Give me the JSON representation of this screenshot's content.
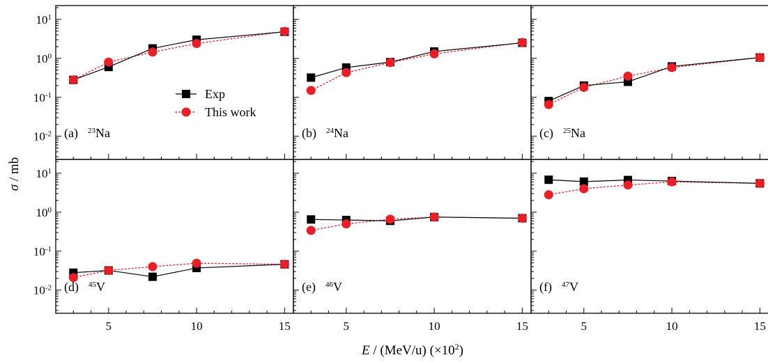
{
  "chart_data": {
    "type": "scatter",
    "xlabel": {
      "italic": "E",
      "rest": " / (MeV/u) (×10",
      "sup": "2",
      "close": ")"
    },
    "ylabel": {
      "italic": "σ",
      "rest": " / mb"
    },
    "x_ticks": [
      5,
      10,
      15
    ],
    "xlim": [
      2,
      15.5
    ],
    "y_scale": "log",
    "ylim": [
      0.003,
      20
    ],
    "y_tick_labels": [
      {
        "base": "10",
        "exp": "-2",
        "value": 0.01
      },
      {
        "base": "10",
        "exp": "-1",
        "value": 0.1
      },
      {
        "base": "10",
        "exp": "0",
        "value": 1
      },
      {
        "base": "10",
        "exp": "1",
        "value": 10
      }
    ],
    "legend": {
      "position": "panel (a) lower-right",
      "entries": [
        {
          "label": "Exp",
          "color": "#000000",
          "marker": "square",
          "line": "solid"
        },
        {
          "label": "This work",
          "color": "#ee1c24",
          "marker": "circle",
          "line": "dotted"
        }
      ]
    },
    "panels": [
      {
        "tag": "(a)",
        "mass": "23",
        "element": "Na",
        "x": [
          3,
          5,
          7.5,
          10,
          15
        ],
        "series": [
          {
            "name": "Exp",
            "values": [
              0.28,
              0.6,
              1.8,
              3.0,
              4.8
            ]
          },
          {
            "name": "This work",
            "values": [
              0.28,
              0.8,
              1.45,
              2.4,
              4.9
            ]
          }
        ]
      },
      {
        "tag": "(b)",
        "mass": "24",
        "element": "Na",
        "x": [
          3,
          5,
          7.5,
          10,
          15
        ],
        "series": [
          {
            "name": "Exp",
            "values": [
              0.32,
              0.58,
              0.8,
              1.5,
              2.5
            ]
          },
          {
            "name": "This work",
            "values": [
              0.15,
              0.43,
              0.78,
              1.3,
              2.55
            ]
          }
        ]
      },
      {
        "tag": "(c)",
        "mass": "25",
        "element": "Na",
        "x": [
          3,
          5,
          7.5,
          10,
          15
        ],
        "series": [
          {
            "name": "Exp",
            "values": [
              0.08,
              0.2,
              0.25,
              0.62,
              1.05
            ]
          },
          {
            "name": "This work",
            "values": [
              0.065,
              0.18,
              0.35,
              0.58,
              1.05
            ]
          }
        ]
      },
      {
        "tag": "(d)",
        "mass": "45",
        "element": "V",
        "x": [
          3,
          5,
          7.5,
          10,
          15
        ],
        "series": [
          {
            "name": "Exp",
            "values": [
              0.028,
              0.032,
              0.022,
              0.037,
              0.046
            ]
          },
          {
            "name": "This work",
            "values": [
              0.021,
              0.032,
              0.04,
              0.049,
              0.046
            ]
          }
        ]
      },
      {
        "tag": "(e)",
        "mass": "46",
        "element": "V",
        "x": [
          3,
          5,
          7.5,
          10,
          15
        ],
        "series": [
          {
            "name": "Exp",
            "values": [
              0.65,
              0.63,
              0.6,
              0.75,
              0.7
            ]
          },
          {
            "name": "This work",
            "values": [
              0.34,
              0.5,
              0.66,
              0.75,
              0.7
            ]
          }
        ]
      },
      {
        "tag": "(f)",
        "mass": "47",
        "element": "V",
        "x": [
          3,
          5,
          7.5,
          10,
          15
        ],
        "series": [
          {
            "name": "Exp",
            "values": [
              6.8,
              6.1,
              6.7,
              6.3,
              5.5
            ]
          },
          {
            "name": "This work",
            "values": [
              2.8,
              4.0,
              5.0,
              6.0,
              5.5
            ]
          }
        ]
      }
    ]
  }
}
